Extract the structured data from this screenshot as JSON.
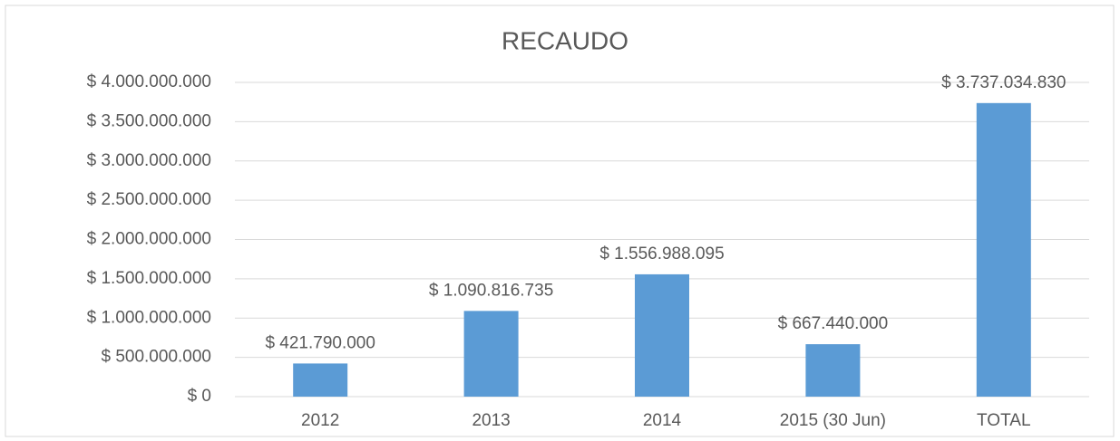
{
  "chart_data": {
    "type": "bar",
    "title": "RECAUDO",
    "categories": [
      "2012",
      "2013",
      "2014",
      "2015 (30 Jun)",
      "TOTAL"
    ],
    "values": [
      421790000,
      1090816735,
      1556988095,
      667440000,
      3737034830
    ],
    "value_labels": [
      "$ 421.790.000",
      "$ 1.090.816.735",
      "$ 1.556.988.095",
      "$ 667.440.000",
      "$ 3.737.034.830"
    ],
    "color": "#5b9bd5",
    "ylim": [
      0,
      4000000000
    ],
    "yticks": [
      {
        "value": 0,
        "label": "$ 0"
      },
      {
        "value": 500000000,
        "label": "$ 500.000.000"
      },
      {
        "value": 1000000000,
        "label": "$ 1.000.000.000"
      },
      {
        "value": 1500000000,
        "label": "$ 1.500.000.000"
      },
      {
        "value": 2000000000,
        "label": "$ 2.000.000.000"
      },
      {
        "value": 2500000000,
        "label": "$ 2.500.000.000"
      },
      {
        "value": 3000000000,
        "label": "$ 3.000.000.000"
      },
      {
        "value": 3500000000,
        "label": "$ 3.500.000.000"
      },
      {
        "value": 4000000000,
        "label": "$ 4.000.000.000"
      }
    ],
    "grid": true
  }
}
